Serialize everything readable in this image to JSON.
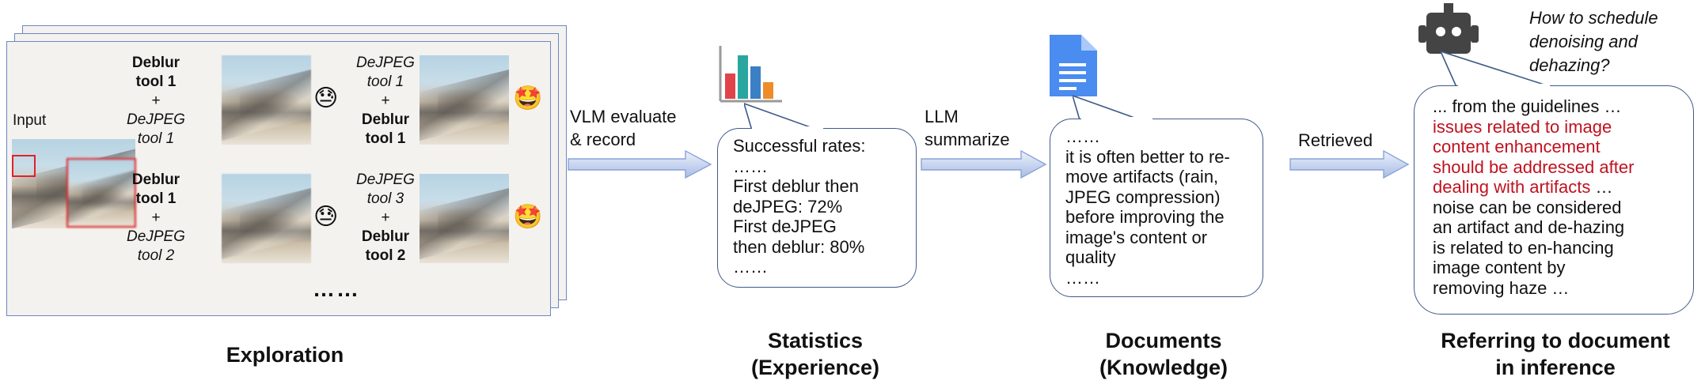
{
  "exploration": {
    "input_label": "Input",
    "rows": [
      {
        "left": {
          "l1": "Deblur",
          "l2": "tool 1",
          "plus": "+",
          "l3": "DeJPEG",
          "l4": "tool 1",
          "emoji": "😓"
        },
        "right": {
          "l1": "DeJPEG",
          "l2": "tool 1",
          "plus": "+",
          "l3": "Deblur",
          "l4": "tool 1",
          "emoji": "🤩"
        }
      },
      {
        "left": {
          "l1": "Deblur",
          "l2": "tool 1",
          "plus": "+",
          "l3": "DeJPEG",
          "l4": "tool 2",
          "emoji": "😓"
        },
        "right": {
          "l1": "DeJPEG",
          "l2": "tool 3",
          "plus": "+",
          "l3": "Deblur",
          "l4": "tool 2",
          "emoji": "🤩"
        }
      }
    ],
    "ellipsis": "……",
    "title": "Exploration"
  },
  "arrows": {
    "vlm": {
      "line1": "VLM evaluate",
      "line2": "& record"
    },
    "llm": {
      "line1": "LLM",
      "line2": "summarize"
    },
    "retrieved": {
      "line1": "Retrieved"
    }
  },
  "statistics": {
    "lines": [
      "Successful rates:",
      "……",
      "First deblur then",
      "deJPEG: 72%",
      "First deJPEG",
      "then deblur: 80%",
      "……"
    ],
    "title1": "Statistics",
    "title2": "(Experience)",
    "icon": "bar-chart-icon",
    "icon_colors": [
      "#e0444b",
      "#2aa6a0",
      "#3b7fc4",
      "#ef8c2a"
    ]
  },
  "documents": {
    "lines": [
      "……",
      "it is often better to re-",
      "move artifacts (rain,",
      "JPEG compression)",
      "before improving the",
      "image's content or",
      "quality",
      "……"
    ],
    "title1": "Documents",
    "title2": "(Knowledge)",
    "icon": "document-icon",
    "icon_color": "#4a8cf0"
  },
  "inference": {
    "question": [
      "How to schedule",
      "denoising and",
      "dehazing?"
    ],
    "lines_before": [
      "... from the guidelines …"
    ],
    "lines_red": [
      "issues related to image",
      "content enhancement",
      "should be addressed after"
    ],
    "mixed_red": "dealing with artifacts",
    "mixed_black": " …",
    "lines_after": [
      "noise can be considered",
      "an artifact and de-hazing",
      "is related to en-hancing",
      "image content by",
      "removing haze …"
    ],
    "title1": "Referring to document",
    "title2": "in inference",
    "icon": "robot-icon",
    "accent": "#c0121f"
  }
}
